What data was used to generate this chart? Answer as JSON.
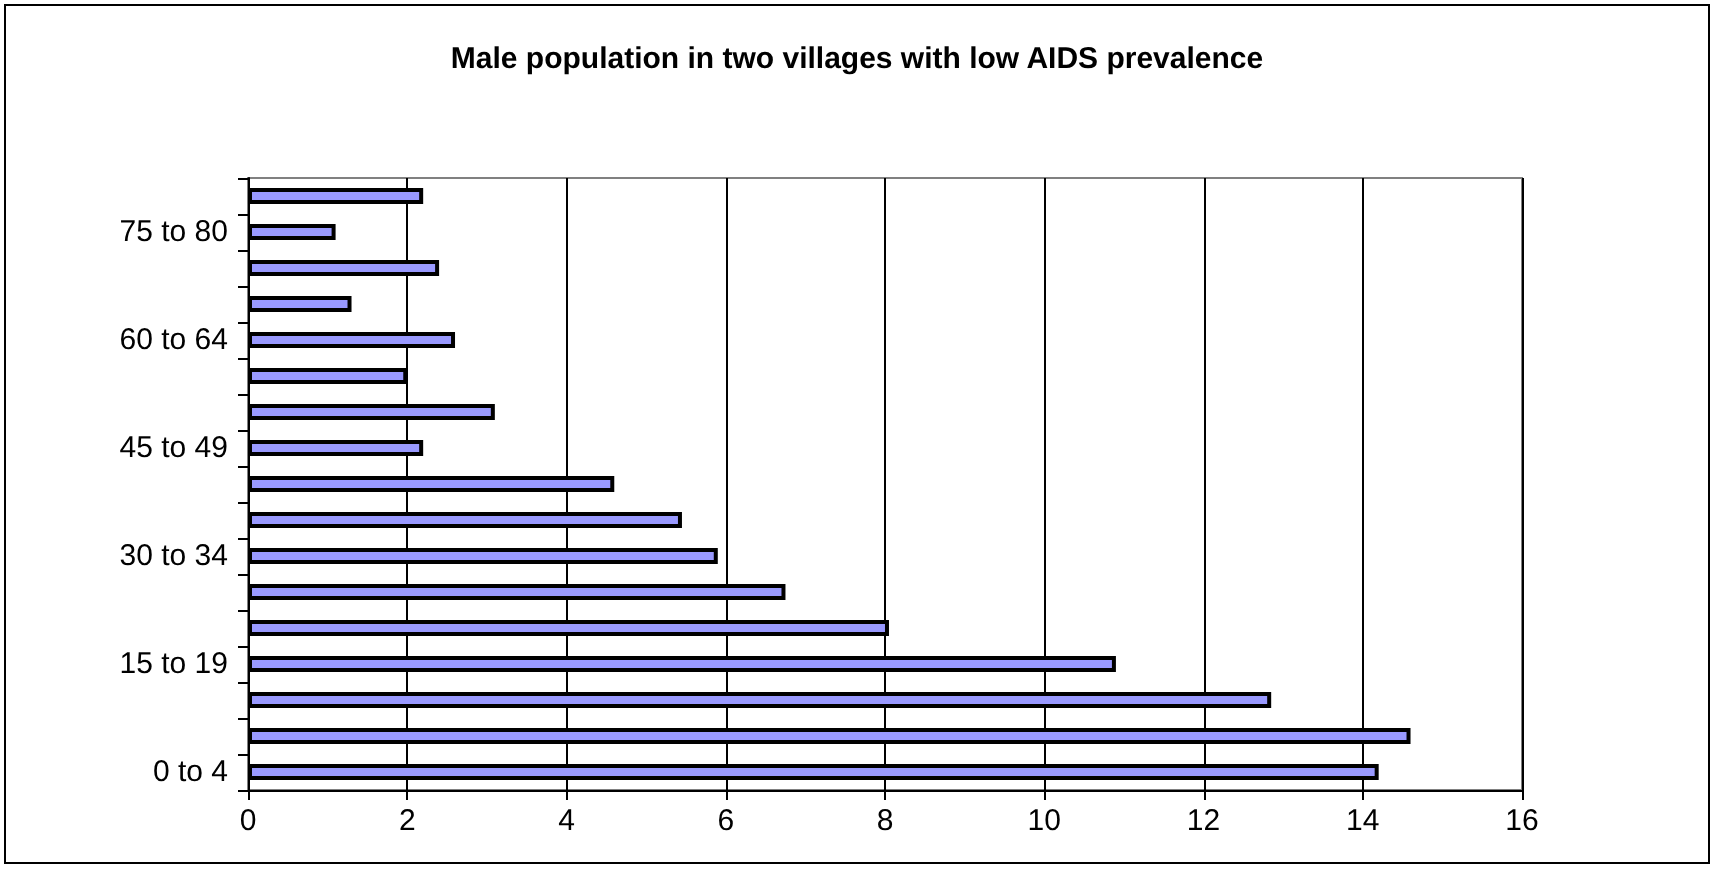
{
  "chart_data": {
    "type": "bar",
    "orientation": "horizontal",
    "title": "Male population in two villages with low AIDS prevalence",
    "categories": [
      null,
      "75 to 80",
      null,
      null,
      "60 to 64",
      null,
      null,
      "45 to 49",
      null,
      null,
      "30 to 34",
      null,
      null,
      "15 to 19",
      null,
      null,
      "0 to 4"
    ],
    "values": [
      2.2,
      1.1,
      2.4,
      1.3,
      2.6,
      2.0,
      3.1,
      2.2,
      4.6,
      5.45,
      5.9,
      6.75,
      8.05,
      10.9,
      12.85,
      14.6,
      14.2
    ],
    "color": "#9999ff",
    "xlim": [
      0,
      16
    ],
    "xticks": [
      0,
      2,
      4,
      6,
      8,
      10,
      12,
      14,
      16
    ],
    "grid": "x"
  }
}
